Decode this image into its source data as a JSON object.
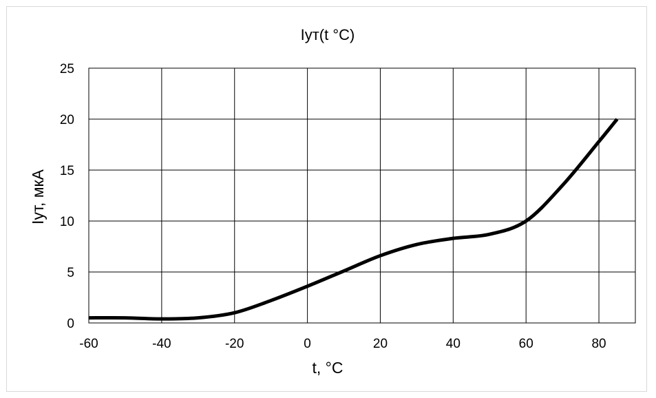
{
  "chart_data": {
    "type": "line",
    "title": "Iут(t °C)",
    "xlabel": "t, °C",
    "ylabel": "Iут, мкА",
    "xlim": [
      -60,
      90
    ],
    "ylim": [
      0,
      25
    ],
    "xticks": [
      -60,
      -40,
      -20,
      0,
      20,
      40,
      60,
      80
    ],
    "yticks": [
      0,
      5,
      10,
      15,
      20,
      25
    ],
    "grid": true,
    "legend": "none",
    "series": [
      {
        "color": "#000000",
        "x": [
          -60,
          -50,
          -40,
          -30,
          -20,
          -10,
          0,
          10,
          20,
          30,
          40,
          50,
          60,
          70,
          80,
          85
        ],
        "y": [
          0.5,
          0.5,
          0.4,
          0.5,
          1.0,
          2.2,
          3.6,
          5.1,
          6.6,
          7.7,
          8.3,
          8.7,
          10.0,
          13.5,
          17.8,
          20.0
        ]
      }
    ]
  }
}
